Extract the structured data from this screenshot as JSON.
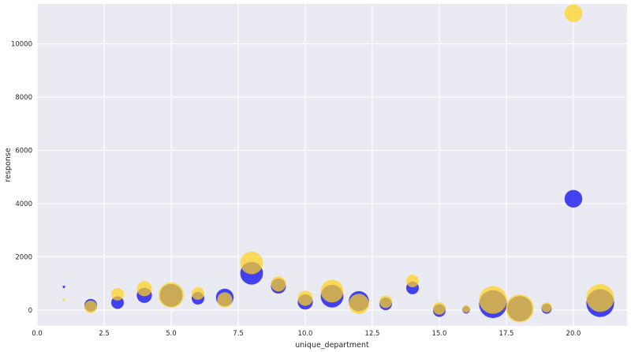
{
  "chart_data": {
    "type": "scatter",
    "xlabel": "unique_department",
    "ylabel": "response",
    "xlim": [
      0,
      22.0
    ],
    "ylim": [
      -600,
      11500
    ],
    "xticks": [
      0.0,
      2.5,
      5.0,
      7.5,
      10.0,
      12.5,
      15.0,
      17.5,
      20.0
    ],
    "xtick_labels": [
      "0.0",
      "2.5",
      "5.0",
      "7.5",
      "10.0",
      "12.5",
      "15.0",
      "17.5",
      "20.0"
    ],
    "yticks": [
      0,
      2000,
      4000,
      6000,
      8000,
      10000
    ],
    "ytick_labels": [
      "0",
      "2000",
      "4000",
      "6000",
      "8000",
      "10000"
    ],
    "grid": true,
    "background": "#eaeaf2",
    "series": [
      {
        "color": "#0000ee",
        "opacity": 0.72,
        "points": [
          {
            "x": 1,
            "y": 870,
            "s": 1
          },
          {
            "x": 2,
            "y": 180,
            "s": 5
          },
          {
            "x": 3,
            "y": 280,
            "s": 5
          },
          {
            "x": 4,
            "y": 550,
            "s": 6
          },
          {
            "x": 5,
            "y": 550,
            "s": 9
          },
          {
            "x": 6,
            "y": 440,
            "s": 5
          },
          {
            "x": 7,
            "y": 470,
            "s": 7
          },
          {
            "x": 8,
            "y": 1380,
            "s": 9
          },
          {
            "x": 9,
            "y": 900,
            "s": 6
          },
          {
            "x": 10,
            "y": 300,
            "s": 6
          },
          {
            "x": 11,
            "y": 520,
            "s": 9
          },
          {
            "x": 12,
            "y": 330,
            "s": 8
          },
          {
            "x": 13,
            "y": 230,
            "s": 5
          },
          {
            "x": 14,
            "y": 830,
            "s": 5
          },
          {
            "x": 15,
            "y": -20,
            "s": 5
          },
          {
            "x": 16,
            "y": 10,
            "s": 3
          },
          {
            "x": 17,
            "y": 220,
            "s": 11
          },
          {
            "x": 18,
            "y": 50,
            "s": 10
          },
          {
            "x": 19,
            "y": 50,
            "s": 4
          },
          {
            "x": 20,
            "y": 4180,
            "s": 7
          },
          {
            "x": 21,
            "y": 260,
            "s": 11
          }
        ]
      },
      {
        "color": "#ffd21a",
        "opacity": 0.72,
        "points": [
          {
            "x": 1,
            "y": 380,
            "s": 1
          },
          {
            "x": 2,
            "y": 120,
            "s": 5
          },
          {
            "x": 3,
            "y": 590,
            "s": 5
          },
          {
            "x": 4,
            "y": 800,
            "s": 6
          },
          {
            "x": 5,
            "y": 560,
            "s": 10
          },
          {
            "x": 6,
            "y": 620,
            "s": 5
          },
          {
            "x": 7,
            "y": 380,
            "s": 6
          },
          {
            "x": 8,
            "y": 1770,
            "s": 9
          },
          {
            "x": 9,
            "y": 980,
            "s": 6
          },
          {
            "x": 10,
            "y": 440,
            "s": 6
          },
          {
            "x": 11,
            "y": 710,
            "s": 9
          },
          {
            "x": 12,
            "y": 230,
            "s": 8
          },
          {
            "x": 13,
            "y": 310,
            "s": 5
          },
          {
            "x": 14,
            "y": 1090,
            "s": 5
          },
          {
            "x": 15,
            "y": 60,
            "s": 5
          },
          {
            "x": 16,
            "y": 40,
            "s": 3
          },
          {
            "x": 17,
            "y": 380,
            "s": 11
          },
          {
            "x": 18,
            "y": 60,
            "s": 11
          },
          {
            "x": 19,
            "y": 100,
            "s": 4
          },
          {
            "x": 20,
            "y": 11150,
            "s": 7
          },
          {
            "x": 21,
            "y": 450,
            "s": 11
          }
        ]
      }
    ]
  }
}
